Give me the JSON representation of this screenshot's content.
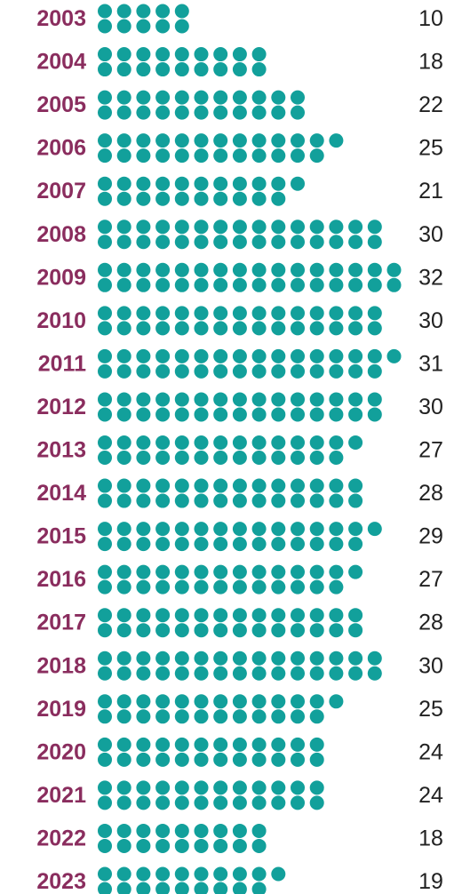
{
  "chart_data": {
    "type": "dot",
    "categories": [
      "2003",
      "2004",
      "2005",
      "2006",
      "2007",
      "2008",
      "2009",
      "2010",
      "2011",
      "2012",
      "2013",
      "2014",
      "2015",
      "2016",
      "2017",
      "2018",
      "2019",
      "2020",
      "2021",
      "2022",
      "2023"
    ],
    "values": [
      10,
      18,
      22,
      25,
      21,
      30,
      32,
      30,
      31,
      30,
      27,
      28,
      29,
      27,
      28,
      30,
      25,
      24,
      24,
      18,
      19
    ],
    "color": "#12a09b",
    "label_color": "#8a2d5e"
  }
}
